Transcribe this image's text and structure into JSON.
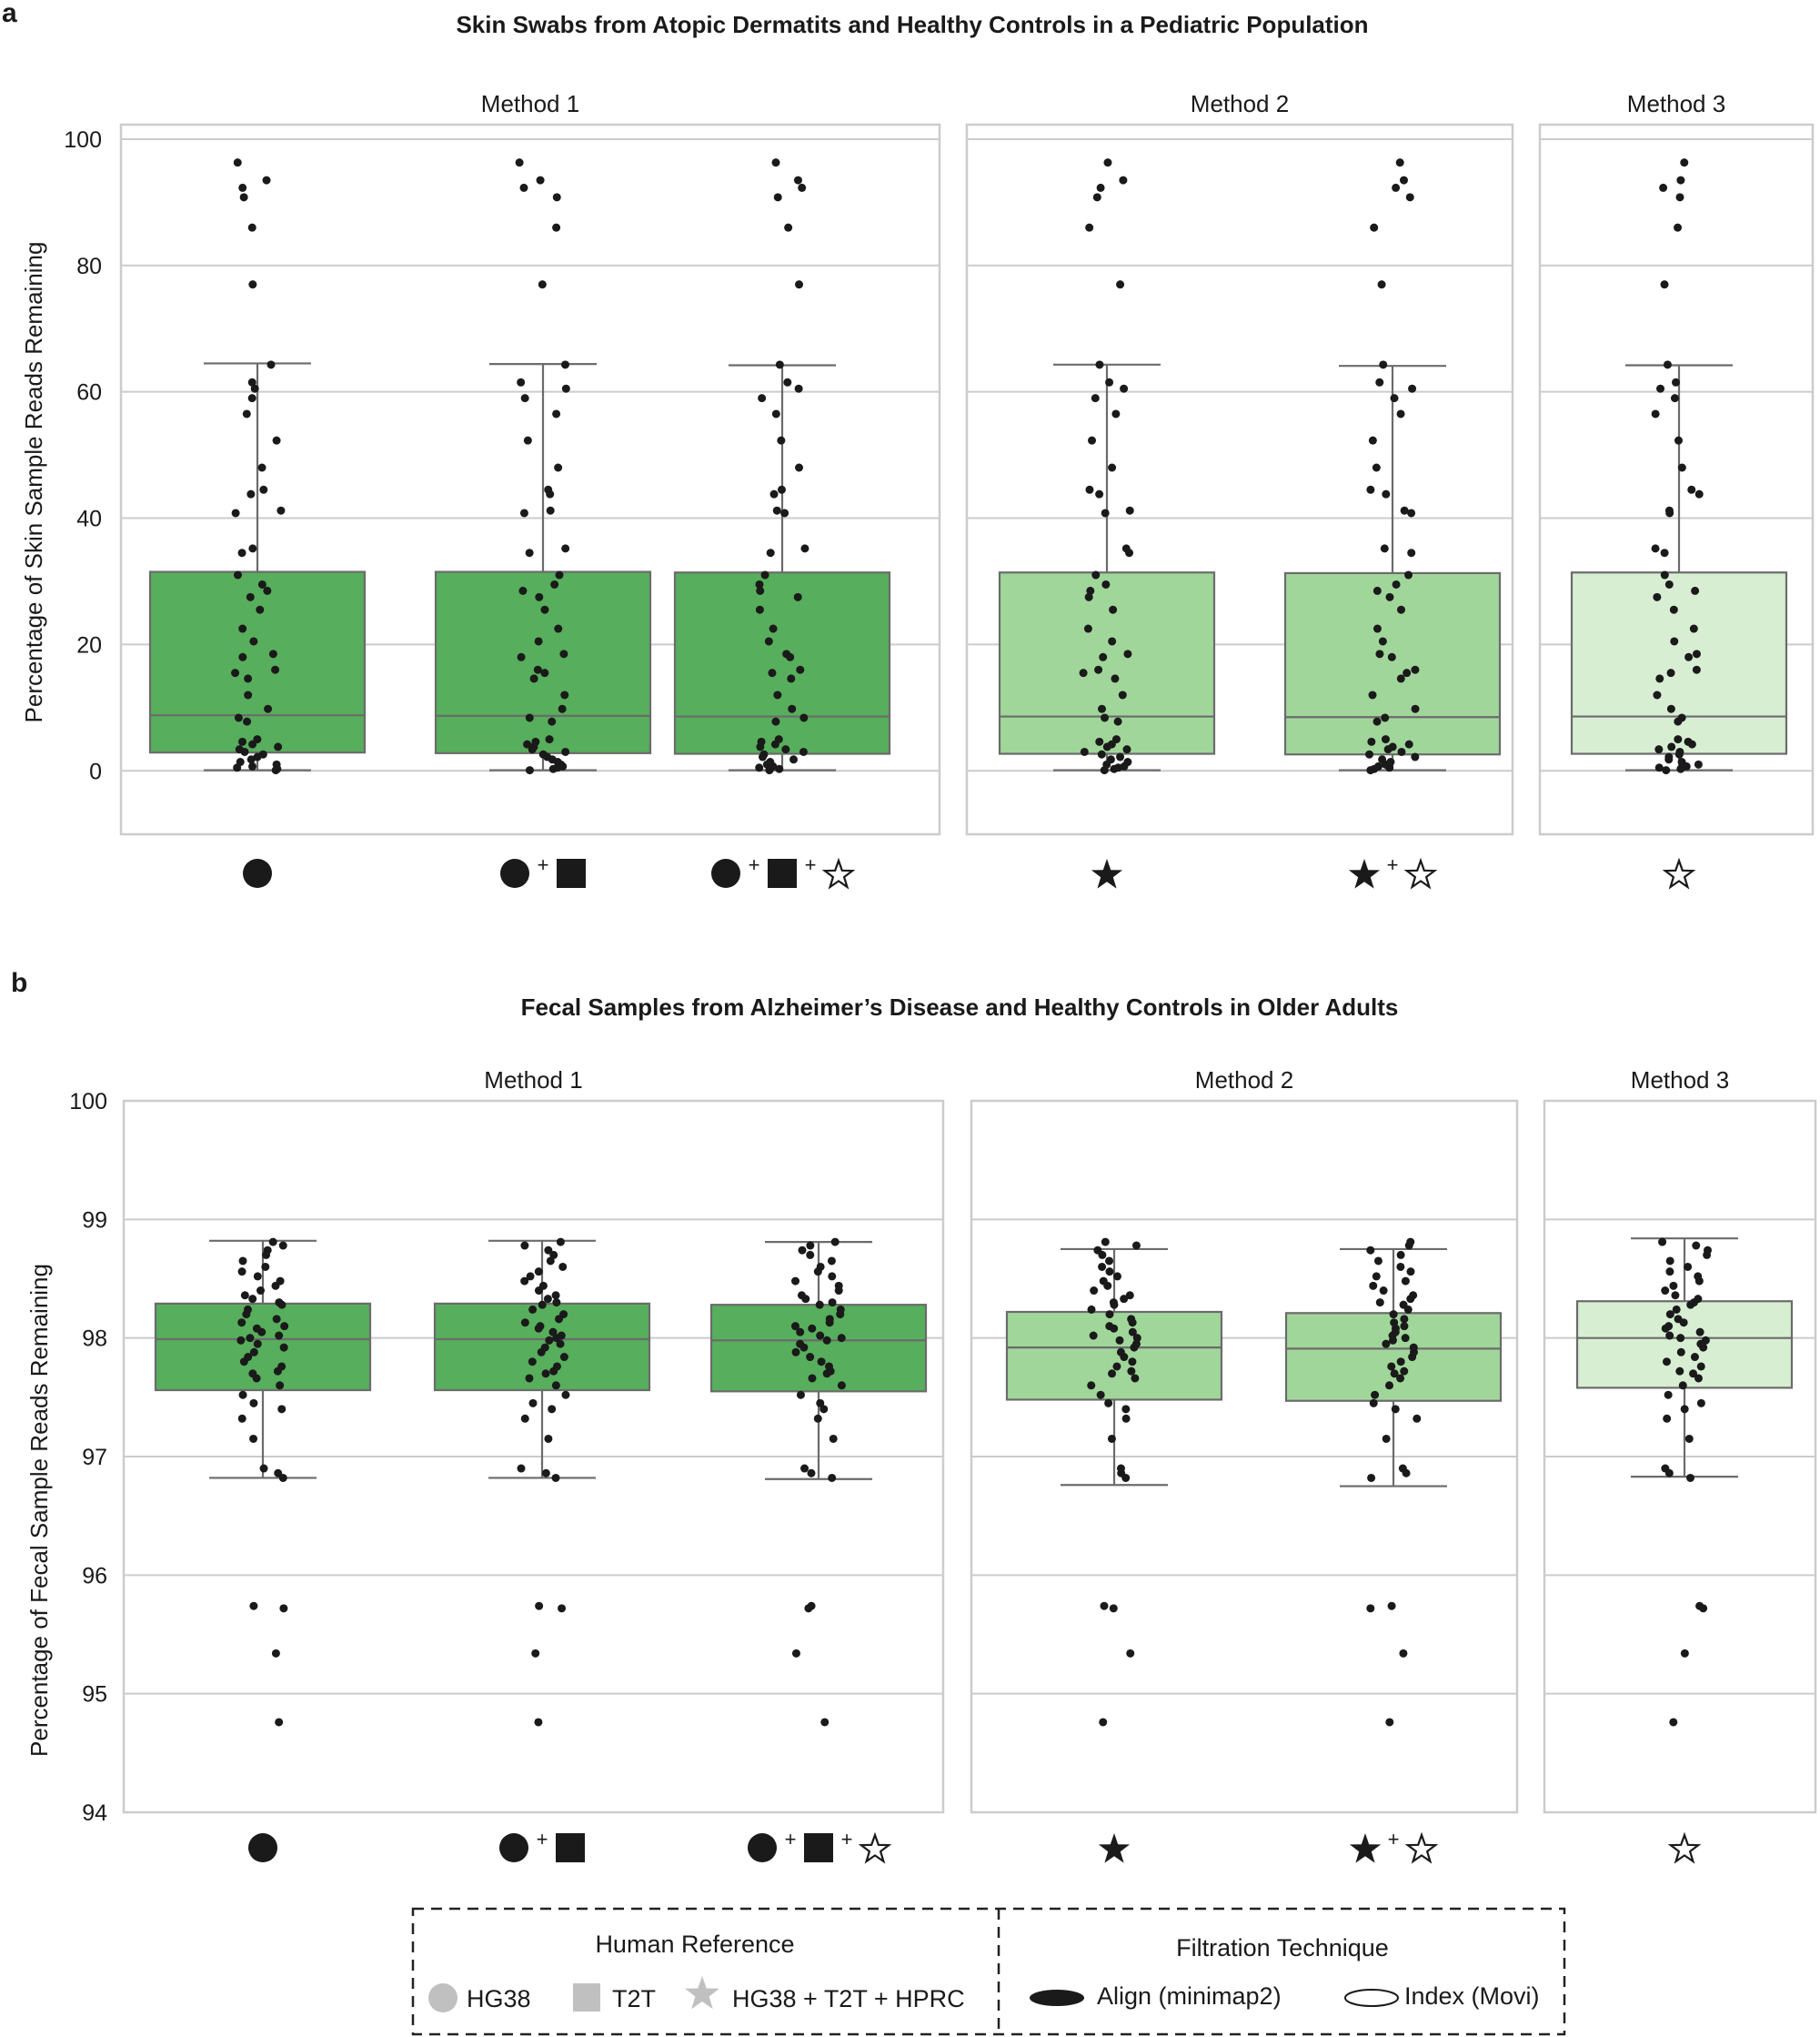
{
  "panel_labels": [
    "a",
    "b"
  ],
  "chart_data": [
    {
      "type": "box",
      "title": "Skin Swabs from Atopic Dermatits and Healthy Controls in a Pediatric Population",
      "ylabel": "Percentage of Skin Sample Reads Remaining",
      "ylim": [
        -5,
        101
      ],
      "yticks": [
        0,
        20,
        40,
        60,
        80,
        100
      ],
      "facets": [
        "Method 1",
        "Method 2",
        "Method 3"
      ],
      "groups": [
        {
          "facet": 0,
          "glyphs": [
            "circle"
          ],
          "color": "#57ae5c",
          "stats": {
            "min": 0.1,
            "q1": 2.9,
            "median": 8.8,
            "q3": 31.5,
            "max": 64.5
          }
        },
        {
          "facet": 0,
          "glyphs": [
            "circle",
            "square"
          ],
          "color": "#57ae5c",
          "stats": {
            "min": 0.1,
            "q1": 2.8,
            "median": 8.7,
            "q3": 31.5,
            "max": 64.4
          }
        },
        {
          "facet": 0,
          "glyphs": [
            "circle",
            "square",
            "star-open"
          ],
          "color": "#57ae5c",
          "stats": {
            "min": 0.1,
            "q1": 2.7,
            "median": 8.6,
            "q3": 31.4,
            "max": 64.2
          }
        },
        {
          "facet": 1,
          "glyphs": [
            "star-filled"
          ],
          "color": "#a1d69b",
          "stats": {
            "min": 0.1,
            "q1": 2.7,
            "median": 8.6,
            "q3": 31.4,
            "max": 64.3
          }
        },
        {
          "facet": 1,
          "glyphs": [
            "star-filled",
            "star-open"
          ],
          "color": "#a1d69b",
          "stats": {
            "min": 0.1,
            "q1": 2.6,
            "median": 8.5,
            "q3": 31.3,
            "max": 64.1
          }
        },
        {
          "facet": 2,
          "glyphs": [
            "star-open"
          ],
          "color": "#d8eed3",
          "stats": {
            "min": 0.1,
            "q1": 2.7,
            "median": 8.6,
            "q3": 31.4,
            "max": 64.2
          }
        }
      ],
      "points": [
        0.1,
        0.3,
        0.5,
        0.7,
        1.0,
        1.4,
        1.8,
        2.2,
        2.6,
        3.0,
        3.4,
        3.8,
        4.2,
        4.6,
        5.0,
        7.8,
        8.4,
        9.8,
        12.0,
        14.6,
        15.5,
        16.0,
        18.0,
        18.5,
        20.5,
        22.5,
        25.5,
        27.5,
        28.5,
        29.5,
        31.0,
        34.5,
        35.2,
        40.8,
        41.2,
        43.8,
        44.5,
        48.0,
        52.3,
        56.5,
        59.0,
        60.5,
        61.5,
        64.3,
        77.0,
        86.0,
        90.8,
        92.3,
        93.5,
        96.3
      ]
    },
    {
      "type": "box",
      "title": "Fecal Samples from Alzheimer’s Disease and Healthy Controls in Older Adults",
      "ylabel": "Percentage of Fecal Sample Reads Remaining",
      "ylim": [
        94,
        100
      ],
      "yticks": [
        94,
        95,
        96,
        97,
        98,
        99,
        100
      ],
      "facets": [
        "Method 1",
        "Method 2",
        "Method 3"
      ],
      "groups": [
        {
          "facet": 0,
          "glyphs": [
            "circle"
          ],
          "color": "#57ae5c",
          "stats": {
            "min": 96.82,
            "q1": 97.56,
            "median": 97.99,
            "q3": 98.29,
            "max": 98.82
          }
        },
        {
          "facet": 0,
          "glyphs": [
            "circle",
            "square"
          ],
          "color": "#57ae5c",
          "stats": {
            "min": 96.82,
            "q1": 97.56,
            "median": 97.99,
            "q3": 98.29,
            "max": 98.82
          }
        },
        {
          "facet": 0,
          "glyphs": [
            "circle",
            "square",
            "star-open"
          ],
          "color": "#57ae5c",
          "stats": {
            "min": 96.81,
            "q1": 97.55,
            "median": 97.98,
            "q3": 98.28,
            "max": 98.81
          }
        },
        {
          "facet": 1,
          "glyphs": [
            "star-filled"
          ],
          "color": "#a1d69b",
          "stats": {
            "min": 96.76,
            "q1": 97.48,
            "median": 97.92,
            "q3": 98.22,
            "max": 98.75
          }
        },
        {
          "facet": 1,
          "glyphs": [
            "star-filled",
            "star-open"
          ],
          "color": "#a1d69b",
          "stats": {
            "min": 96.75,
            "q1": 97.47,
            "median": 97.91,
            "q3": 98.21,
            "max": 98.75
          }
        },
        {
          "facet": 2,
          "glyphs": [
            "star-open"
          ],
          "color": "#d8eed3",
          "stats": {
            "min": 96.83,
            "q1": 97.58,
            "median": 98.0,
            "q3": 98.31,
            "max": 98.84
          }
        }
      ],
      "points": [
        94.76,
        95.34,
        95.72,
        95.74,
        96.82,
        96.86,
        96.9,
        97.15,
        97.32,
        97.4,
        97.45,
        97.52,
        97.6,
        97.66,
        97.7,
        97.72,
        97.76,
        97.8,
        97.84,
        97.88,
        97.92,
        97.95,
        97.98,
        98.0,
        98.02,
        98.05,
        98.08,
        98.1,
        98.13,
        98.16,
        98.2,
        98.24,
        98.28,
        98.3,
        98.33,
        98.36,
        98.4,
        98.44,
        98.48,
        98.52,
        98.56,
        98.6,
        98.65,
        98.7,
        98.74,
        98.78,
        98.81
      ]
    }
  ],
  "legend": {
    "human_reference": {
      "title": "Human Reference",
      "items": [
        {
          "glyph": "circle",
          "label": "HG38"
        },
        {
          "glyph": "square",
          "label": "T2T"
        },
        {
          "glyph": "star",
          "label": "HG38 + T2T + HPRC"
        }
      ]
    },
    "filtration": {
      "title": "Filtration Technique",
      "items": [
        {
          "glyph": "filled-ellipse",
          "label": "Align (minimap2)"
        },
        {
          "glyph": "open-ellipse",
          "label": "Index (Movi)"
        }
      ]
    }
  },
  "plus_sign": "+",
  "colors": {
    "dark_green": "#57ae5c",
    "mid_green": "#a1d69b",
    "light_green": "#d8eed3",
    "grid": "#cccccc",
    "line": "#6b6b6b",
    "point": "#1a1a1a",
    "legend_gray": "#c0c0c0"
  }
}
